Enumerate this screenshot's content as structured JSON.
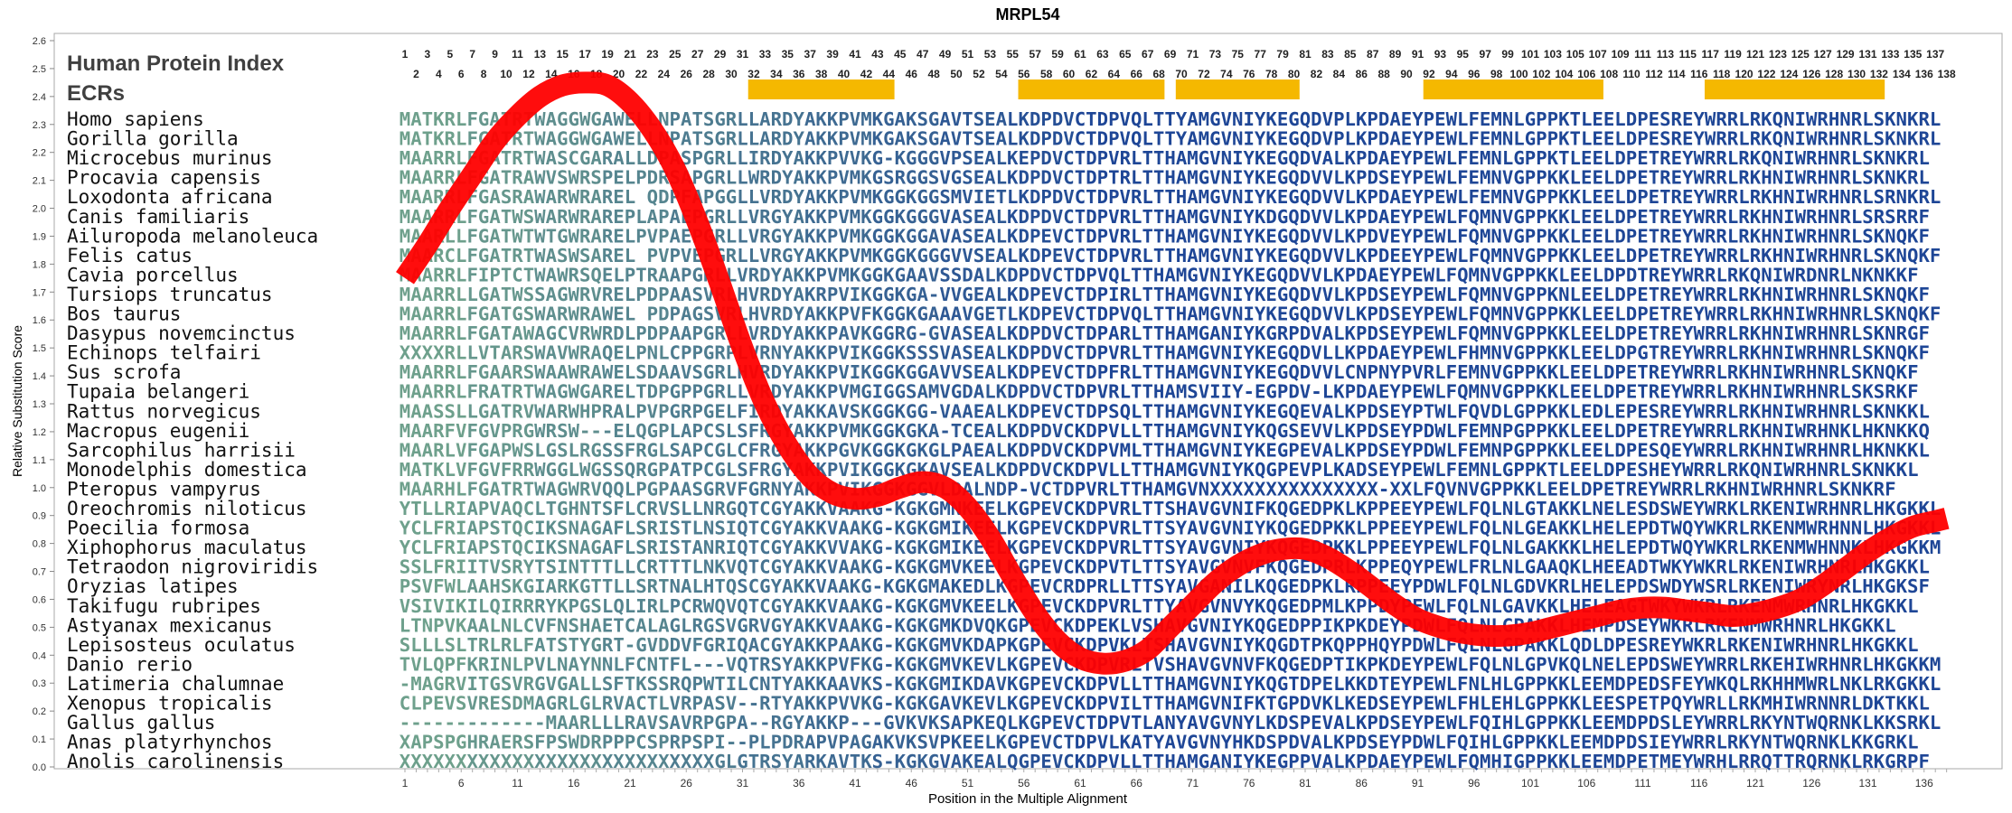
{
  "chart_data": {
    "type": "line",
    "title": "MRPL54",
    "xlabel": "Position in the Multiple Alignment",
    "ylabel": "Relative Substitution Score",
    "xlim": [
      1,
      138
    ],
    "ylim": [
      0.0,
      2.6
    ],
    "yticks": [
      "0.0",
      "0.1",
      "0.2",
      "0.3",
      "0.4",
      "0.5",
      "0.6",
      "0.7",
      "0.8",
      "0.9",
      "1.0",
      "1.1",
      "1.2",
      "1.3",
      "1.4",
      "1.5",
      "1.6",
      "1.7",
      "1.8",
      "1.9",
      "2.0",
      "2.1",
      "2.2",
      "2.3",
      "2.4",
      "2.5",
      "2.6"
    ],
    "xticks": [
      "1",
      "6",
      "11",
      "16",
      "21",
      "26",
      "31",
      "36",
      "41",
      "46",
      "51",
      "56",
      "61",
      "66",
      "71",
      "76",
      "81",
      "86",
      "91",
      "96",
      "101",
      "106",
      "111",
      "116",
      "121",
      "126",
      "131",
      "136"
    ],
    "grid": false,
    "header_labels": [
      "Human Protein Index",
      "ECRs"
    ],
    "index_row_odd": [
      "1",
      "3",
      "5",
      "7",
      "9",
      "11",
      "13",
      "15",
      "17",
      "19",
      "21",
      "23",
      "25",
      "27",
      "29",
      "31",
      "33",
      "35",
      "37",
      "39",
      "41",
      "43",
      "45",
      "47",
      "49",
      "51",
      "53",
      "55",
      "57",
      "59",
      "61",
      "63",
      "65",
      "67",
      "69",
      "71",
      "73",
      "75",
      "77",
      "79",
      "81",
      "83",
      "85",
      "87",
      "89",
      "91",
      "93",
      "95",
      "97",
      "99",
      "101",
      "103",
      "105",
      "107",
      "109",
      "111",
      "113",
      "115",
      "117",
      "119",
      "121",
      "123",
      "125",
      "127",
      "129",
      "131",
      "133",
      "135",
      "137"
    ],
    "index_row_even": [
      "2",
      "4",
      "6",
      "8",
      "10",
      "12",
      "14",
      "16",
      "18",
      "20",
      "22",
      "24",
      "26",
      "28",
      "30",
      "32",
      "34",
      "36",
      "38",
      "40",
      "42",
      "44",
      "46",
      "48",
      "50",
      "52",
      "54",
      "56",
      "58",
      "60",
      "62",
      "64",
      "66",
      "68",
      "70",
      "72",
      "74",
      "76",
      "78",
      "80",
      "82",
      "84",
      "86",
      "88",
      "90",
      "92",
      "94",
      "96",
      "98",
      "100",
      "102",
      "104",
      "106",
      "108",
      "110",
      "112",
      "114",
      "116",
      "118",
      "120",
      "122",
      "124",
      "126",
      "128",
      "130",
      "132",
      "134",
      "136",
      "138"
    ],
    "ecr_regions": [
      [
        32,
        44
      ],
      [
        56,
        68
      ],
      [
        70,
        80
      ],
      [
        92,
        107
      ],
      [
        117,
        132
      ]
    ],
    "ecr_color": "#f5b800",
    "line_color": "#ff0000",
    "species": [
      {
        "name": "Homo sapiens",
        "seq": "MATKRLFGATRTWAGGWGAWELLNPATSGRLLARDYAKKPVMKGAKSGAVTSEALKDPDVCTDPVQLTTYAMGVNIYKEGQDVPLKPDAEYPEWLFEMNLGPPKTLEELDPESREYWRRLRKQNIWRHNRLSKNKRL"
      },
      {
        "name": "Gorilla gorilla",
        "seq": "MATKRLFGATRTWAGGWGAWELLNPATSGRLLARDYAKKPVMKGAKSGAVTSEALKDPDVCTDPVQLTTYAMGVNIYKEGQDVPLKPDAEYPEWLFEMNLGPPKTLEELDPESREYWRRLRKQNIWRHNRLSKNKRL"
      },
      {
        "name": "Microcebus murinus",
        "seq": "MAARRLFGATRTWASCGARALLDPASPGRLLIRDYAKKPVVKG-KGGGVPSEALKEPDVCTDPVRLTTHAMGVNIYKEGQDVALKPDAEYPEWLFEMNLGPPKTLEELDPETREYWRRLRKQNIWRHNRLSKNKRL"
      },
      {
        "name": "Procavia capensis",
        "seq": "MAARRLFGATRAWVSWRSPELPDRSAPGRLLWRDYAKKPVMKGSRGGSVGSEALKDPDVCTDPTRLTTHAMGVNIYKEGQDVVLKPDSEYPEWLFEMNVGPPKKLEELDPETREYWRRLRKHNIWRHNRLSKNKRL"
      },
      {
        "name": "Loxodonta africana",
        "seq": "MAARRLFGASRAWARWRAREL QDPFAPGGLLVRDYAKKPVMKGGKGGSMVIETLKDPDVCTDPVRLTTHAMGVNIYKEGQDVVLKPDAEYPEWLFEMNVGPPKKLEELDPETREYWRRLRKHNIWRHNRLSRNKRL"
      },
      {
        "name": "Canis familiaris",
        "seq": "MAARRLFGATWSWARWRAREPLAPAEPGRLLVRGYAKKPVMKGGKGGGVASEALKDPDVCTDPVRLTTHAMGVNIYKDGQDVVLKPDAEYPEWLFQMNVGPPKKLEELDPETREYWRRLRKHNIWRHNRLSRSRRF"
      },
      {
        "name": "Ailuropoda melanoleuca",
        "seq": "MAARLLFGATWTWTGWRARELPVPAEPGRLLVRGYAKKPVMKGGKGGAVASEALKDPEVCTDPVRLTTHAMGVNIYKEGQDVVLKPDVEYPEWLFQMNVGPPKKLEELDPETREYWRRLRKHNIWRHNRLSKNQKF"
      },
      {
        "name": "Felis catus",
        "seq": "MAARCLFGATRTWASWSAREL PVPVEPGRLLVRGYAKKPVMKGGKGGGVVSEALKDPEVCTDPVRLTTHAMGVNIYKEGQDVVLKPDEEYPEWLFQMNVGPPKKLEELDPETREYWRRLRKHNIWRHNRLSKNQKF"
      },
      {
        "name": "Cavia porcellus",
        "seq": "MAARRLFIPTCTWAWRSQELPTRAAPGRLLVRDYAKKPVMKGGKGAAVSSDALKDPDVCTDPVQLTTHAMGVNIYKEGQDVVLKPDAEYPEWLFQMNVGPPKKLEELDPDTREYWRRLRKQNIWRDNRLNKNKKF"
      },
      {
        "name": "Tursiops truncatus",
        "seq": "MAARRLLGATWSSAGWRVRELPDPAASVRLHVRDYAKRPVIKGGKGA-VVGEALKDPEVCTDPIRLTTHAMGVNIYKEGQDVVLKPDSEYPEWLFQMNVGPPKNLEELDPETREYWRRLRKHNIWRHNRLSKNQKF"
      },
      {
        "name": "Bos taurus",
        "seq": "MAARRLFGATGSWARWRAWEL PDPAGSVRLHVRDYAKKPVFKGGKGAAAVGETLKDPEVCTDPVQLTTHAMGVNIYKEGQDVVLKPDSEYPEWLFQMNVGPPKKLEELDPETREYWRRLRKHNIWRHNRLSKNQKF"
      },
      {
        "name": "Dasypus novemcinctus",
        "seq": "MAARRLFGATAWAGCVRWRDLPDPAAPGRLLVRDYAKKPAVKGGRG-GVASEALKDPDVCTDPARLTTHAMGANIYKGRPDVALKPDSEYPEWLFQMNVGPPKKLEELDPETREYWRRLRKHNIWRHNRLSKNRGF"
      },
      {
        "name": "Echinops telfairi",
        "seq": "XXXXRLLVTARSWAVWRAQELPNLCPPGRPLVRNYAKKPVIKGGKSSSVASEALKDPDVCTDPVRLTTHAMGVNIYKEGQDVLLKPDAEYPEWLFHMNVGPPKKLEELDPGTREYWRRLRKHNIWRHNRLSKNQKF"
      },
      {
        "name": "Sus scrofa",
        "seq": "MAARRLFGAARSWAAWRAWELSDAAVSGRLHVRDYAKKPVIKGGKGGAVVSEALKDPEVCTDPFRLTTHAMGVNIYKEGQDVVLCNPNYPVRLFEMNVGPPKKLEELDPETREYWRRLRKHNIWRHNRLSKNQKF"
      },
      {
        "name": "Tupaia belangeri",
        "seq": "MAARRLFRATRTWAGWGARELTDPGPPGRLLVRDYAKKPVMGIGGSAMVGDALKDPDVCTDPVRLTTHAMSVIIY-EGPDV-LKPDAEYPEWLFQMNVGPPKKLEELDPETREYWRRLRKHNIWRHNRLSKSRKF"
      },
      {
        "name": "Rattus norvegicus",
        "seq": "MAASSLLGATRVWARWHPRALPVPGRPGELFIRDYAKKAVSKGGKGG-VAAEALKDPEVCTDPSQLTTHAMGVNIYKEGQEVALKPDSEYPTWLFQVDLGPPKKLEDLEPESREYWRRLRKHNIWRHNRLSKNKKL"
      },
      {
        "name": "Macropus eugenii",
        "seq": "MAARFVFGVPRGWRSW---ELQGPLAPCSLSFRGYAKKPVMKGGKGKA-TCEALKDPDVCKDPVLLTTHAMGVNIYKQGSEVVLKPDSEYPDWLFEMNPGPPKKLEELDPETREYWRRLRKHNIWRHNKLHKNKKQ"
      },
      {
        "name": "Sarcophilus harrisii",
        "seq": "MAARLVFGAPWSLGSLRGSSFRGLSAPCGLCFRGYAKKPGVKGGKGKGLPAEALKDPDVCKDPVMLTTHAMGVNIYKEGPEVALKPDSEYPDWLFEMNPGPPKKLEELDPESQEYWRRLRKHNIWRHNRLHKNKKL"
      },
      {
        "name": "Monodelphis domestica",
        "seq": "MATKLVFGVFRRWGGLWGSSQRGPATPCGLSFRGYAKKPVIKGGKGKAVSEALKDPDVCKDPVLLTTHAMGVNIYKQGPEVPLKADSEYPEWLFEMNLGPPKTLEELDPESHEYWRRLRKQNIWRHNRLSKNKKL"
      },
      {
        "name": "Pteropus vampyrus",
        "seq": "MAARHLFGATRTWAGWRVQQLPGPAASGRVFGRNYAKKPVIKGGKGGVLDALNDP-VCTDPVRLTTHAMGVNXXXXXXXXXXXXXXX-XXLFQVNVGPPKKLEELDPETREYWRRLRKHNIWRHNRLSKNKRF"
      },
      {
        "name": "Oreochromis niloticus",
        "seq": "YTLLRIAPVAQCLTGHNTSFLCRVSLLNRGQTCGYAKKVAAKG-KGKGMNKEELKGPEVCKDPVRLTTSHAVGVNIFKQGEDPKLKPPEEYPEWLFQLNLGTAKKLNELESDSWEYWRKLRKENIWRHNRLHKGKKL"
      },
      {
        "name": "Poecilia formosa",
        "seq": "YCLFRIAPSTQCIKSNAGAFLSRISTLNSIQTCGYAKKVAAKG-KGKGMIKEELKGPEVCKDPVRLTTSYAVGVNIYKQGEDPKKLPPEEYPEWLFQLNLGEAKKLHELEPDTWQYWKRLRKENMWRHNNLHKGKKL"
      },
      {
        "name": "Xiphophorus maculatus",
        "seq": "YCLFRIAPSTQCIKSNAGAFLSRISTANRIQTCGYAKKVVAKG-KGKGMIKEELKGPEVCKDPVRLTTSYAVGVNIYKQGEDPKKLPPEEYPEWLFQLNLGAKKKLHELEPDTWQYWKRLRKENMWHNNKLHKGKKM"
      },
      {
        "name": "Tetraodon nigroviridis",
        "seq": "SSLFRIITVSRYTSINTTTLLCRTTTLNKVQTCGYAKKVAAKG-KGKGMVKEELKGPEVCKDPVTLTTSYAVGVNVFKQGEDPRLKPPEQYPEWLFRLNLGAAQKLHEEADTWKYWKRLRKENIWRHNRLHKGKKL"
      },
      {
        "name": "Oryzias latipes",
        "seq": "PSVFWLAAHSKGIARKGTTLLSRTNALHTQSCGYAKKVAAKG-KGKGMAKEDLKGPEVCRDPRLLTTSYAVGANILKQGEDPKLRPPEEYPDWLFQLNLGDVKRLHELEPDSWDYWSRLRKENIWRYNRLHKGKSF"
      },
      {
        "name": "Takifugu rubripes",
        "seq": "VSIVIKILQIRRRYKPGSLQLIRLPCRWQVQTCGYAKKVAAKG-KGKGMVKEELKGPEVCKDPVRLTTYAVGVNVYKQGEDPMLKPPDYPEWLFQLNLGAVKKLHELEAGTWKYWKRLRKENMWRHNRLHKGKKL"
      },
      {
        "name": "Astyanax mexicanus",
        "seq": "LTNPVKAALNLCVFNSHAETCALAGLRGSVGRVGYAKKVAAKG-KGKGMKDVQKGPEVCKDPEKLVSHAVGVNIYKQGEDPPIKPKDEYPDWLFQLNLGPAKKLHEMPDSEYWKRLRKENMWRHNRLHKGKKL"
      },
      {
        "name": "Lepisosteus oculatus",
        "seq": "SLLLSLTRLRLFATSTYGRT-GVDDVFGRIQACGYAKKPAAKG-KGKGMVKDAPKGPEVCKDPVKLTSHAVGVNIYKQGDTPKQPPHQYPDWLFQLNLGPAKKLQDLDPESREYWKRLRKENIWRHNRLHKGKKL"
      },
      {
        "name": "Danio rerio",
        "seq": "TVLQPFKRINLPVLNAYNNLFCNTFL---VQTRSYAKKPVFKG-KGKGMVKEVLKGPEVCKDPVRLTVSHAVGVNVFKQGEDPTIKPKDEYPEWLFQLNLGPVKQLNELEPDSWEYWRRLRKEHIWRHNRLHKGKKM"
      },
      {
        "name": "Latimeria chalumnae",
        "seq": "-MAGRVITGSVRGVGALLSFTKSSRQPWTILCNTYAKKAAVKS-KGKGMIKDAVKGPEVCKDPVLLTTHAMGVNIYKQGTDPELKKDTEYPEWLFNLHLGPPKKLEEMDPEDSFEYWKQLRKHHMWRLNKLRKGKKL"
      },
      {
        "name": "Xenopus tropicalis",
        "seq": "CLPEVSVRESDMAGRLGLRVACTLVRPASV--RTYAKKPVVKG-KGKGAVKEVLKGPEVCKDPVILTTHAMGVNIFKTGPDVKLKEDSEYPEWLFHLEHLGPPKKLEESPETPQYWRLLRKMHIWRNNRLDKTKKL"
      },
      {
        "name": "Gallus gallus",
        "seq": "-------------MAARLLLRAVSAVRPGPA--RGYAKKP---GVKVKSAPKEQLKGPEVCTDPVTLANYAVGVNYLKDSPEVALKPDSEYPEWLFQIHLGPPKKLEEMDPDSLEYWRRLRKYNTWQRNKLKKSRKL"
      },
      {
        "name": "Anas platyrhynchos",
        "seq": "XAPSPGHRAERSFPSWDRPPPCSPRPSPI--PLPDRAPVPAGAKVKSVPKEELKGPEVCTDPVLKATYAVGVNYHKDSPDVALKPDSEYPDWLFQIHLGPPKKLEEMDPDSIEYWRRLRKYNTWQRNKLKKGRKL"
      },
      {
        "name": "Anolis carolinensis",
        "seq": "XXXXXXXXXXXXXXXXXXXXXXXXXXXXGLGTRSYARKAVTKS-KGKGVAKEALQGPEVCKDPVLLTTHAMGANIYKEGPPVALKPDAEYPEWLFQMHIGPPKKLEEMDPETMEYWRHLRRQTTRQRNKLRKGRPF"
      }
    ],
    "series": [
      {
        "x": [
          1,
          3,
          5,
          7,
          9,
          11,
          13,
          15,
          17,
          19,
          21,
          23,
          25,
          27,
          29,
          31,
          33,
          35,
          37,
          39,
          41,
          43,
          45,
          47,
          49,
          51,
          53,
          55,
          57,
          59,
          61,
          63,
          65,
          67,
          69,
          71,
          73,
          75,
          77,
          79,
          81,
          83,
          85,
          87,
          89,
          91,
          93,
          95,
          97,
          99,
          101,
          103,
          105,
          107,
          109,
          111,
          113,
          115,
          117,
          119,
          121,
          123,
          125,
          127,
          129,
          131,
          133,
          135,
          137,
          138
        ],
        "y": [
          1.75,
          1.87,
          2.0,
          2.12,
          2.24,
          2.33,
          2.4,
          2.44,
          2.45,
          2.44,
          2.38,
          2.28,
          2.14,
          1.95,
          1.73,
          1.5,
          1.3,
          1.15,
          1.04,
          0.98,
          0.96,
          0.97,
          1.0,
          1.02,
          1.0,
          0.93,
          0.82,
          0.68,
          0.55,
          0.45,
          0.39,
          0.37,
          0.38,
          0.42,
          0.5,
          0.58,
          0.66,
          0.72,
          0.76,
          0.78,
          0.78,
          0.75,
          0.7,
          0.64,
          0.58,
          0.53,
          0.5,
          0.48,
          0.47,
          0.47,
          0.48,
          0.5,
          0.52,
          0.54,
          0.56,
          0.57,
          0.57,
          0.56,
          0.55,
          0.54,
          0.55,
          0.57,
          0.6,
          0.65,
          0.71,
          0.77,
          0.82,
          0.86,
          0.88,
          0.89
        ]
      }
    ]
  }
}
